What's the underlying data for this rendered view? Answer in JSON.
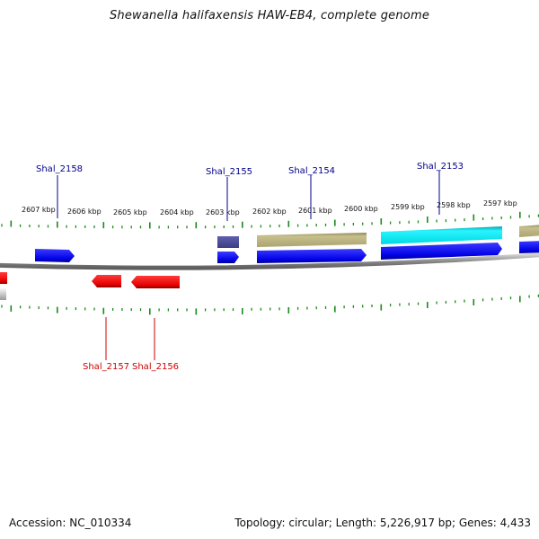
{
  "title": "Shewanella halifaxensis HAW-EB4, complete genome",
  "footer": {
    "accession": "Accession: NC_010334",
    "summary": "Topology: circular; Length: 5,226,917 bp; Genes: 4,433"
  },
  "colors": {
    "forward_gene": "#0000ee",
    "reverse_gene": "#ee0000",
    "tick": "#1a8a1a",
    "backbone": "#8c8c8c",
    "label_forward": "#00008b",
    "label_reverse": "#cc0000",
    "feature_olive": "#b5ad78",
    "feature_cyan": "#00e8f0",
    "feature_slate": "#4b4b9a"
  },
  "scale": {
    "unit": "kbp",
    "labels": [
      "2607 kbp",
      "2606 kbp",
      "2605 kbp",
      "2604 kbp",
      "2603 kbp",
      "2602 kbp",
      "2601 kbp",
      "2600 kbp",
      "2599 kbp",
      "2598 kbp",
      "2597 kbp"
    ]
  },
  "gene_labels": {
    "forward": [
      "Shal_2158",
      "Shal_2155",
      "Shal_2154",
      "Shal_2153"
    ],
    "reverse": [
      "Shal_2157",
      "Shal_2156"
    ]
  }
}
